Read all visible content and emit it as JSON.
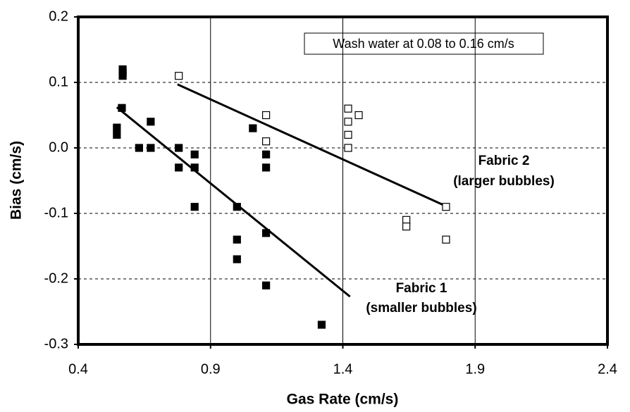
{
  "chart_data": {
    "type": "scatter",
    "x_label": "Gas Rate (cm/s)",
    "y_label": "Bias (cm/s)",
    "xlim": [
      0.4,
      2.4
    ],
    "ylim": [
      -0.3,
      0.2
    ],
    "xticks": [
      0.4,
      0.9,
      1.4,
      1.9,
      2.4
    ],
    "yticks": [
      -0.3,
      -0.2,
      -0.1,
      {
        "value": 0,
        "label": "0.0"
      },
      0.1,
      0.2
    ],
    "x_grid": "solid",
    "y_grid": "dashed",
    "series": [
      {
        "name": "Fabric 1",
        "marker": "filled-square",
        "color": "#000000",
        "x": [
          0.546,
          0.546,
          0.568,
          0.568,
          0.568,
          0.565,
          0.63,
          0.674,
          0.674,
          0.78,
          0.78,
          0.84,
          0.84,
          0.84,
          1.0,
          1.0,
          1.0,
          1.06,
          1.11,
          1.11,
          1.11,
          1.11,
          1.32
        ],
        "values": [
          0.031,
          0.02,
          0.12,
          0.115,
          0.11,
          0.061,
          0,
          0.04,
          0,
          0,
          -0.03,
          -0.01,
          -0.03,
          -0.09,
          -0.09,
          -0.14,
          -0.17,
          0.03,
          -0.01,
          -0.03,
          -0.13,
          -0.21,
          -0.27
        ]
      },
      {
        "name": "Fabric 2",
        "marker": "open-square",
        "color": "#000000",
        "x": [
          0.78,
          1.11,
          1.11,
          1.42,
          1.42,
          1.42,
          1.42,
          1.46,
          1.64,
          1.64,
          1.79,
          1.79
        ],
        "values": [
          0.11,
          0.05,
          0.01,
          0.06,
          0.04,
          0.02,
          0,
          0.05,
          -0.11,
          -0.12,
          -0.09,
          -0.14
        ]
      }
    ],
    "trendlines": [
      {
        "x": [
          0.546,
          1.427
        ],
        "values": [
          0.062,
          -0.227
        ]
      },
      {
        "x": [
          0.775,
          1.79
        ],
        "values": [
          0.097,
          -0.089
        ]
      }
    ],
    "annotations": [
      "Wash water at 0.08 to 0.16 cm/s",
      "Fabric 2",
      "(larger bubbles)",
      "Fabric 1",
      "(smaller bubbles)"
    ]
  }
}
